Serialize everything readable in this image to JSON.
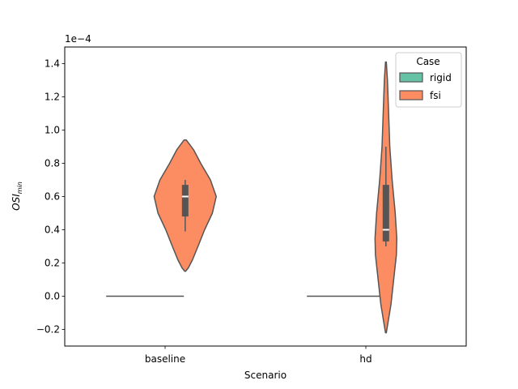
{
  "chart_data": {
    "type": "violin",
    "xlabel": "Scenario",
    "ylabel": "OSI",
    "ylabel_subscript": "min",
    "scale_label": "1e−4",
    "categories": [
      "baseline",
      "hd"
    ],
    "ylim": [
      -0.3,
      1.5
    ],
    "yticks": [
      -0.2,
      0.0,
      0.2,
      0.4,
      0.6,
      0.8,
      1.0,
      1.2,
      1.4
    ],
    "ytick_labels": [
      "−0.2",
      "0.0",
      "0.2",
      "0.4",
      "0.6",
      "0.8",
      "1.0",
      "1.2",
      "1.4"
    ],
    "legend": {
      "title": "Case",
      "placement": "top-right",
      "entries": [
        {
          "label": "rigid",
          "color": "#66c2a5"
        },
        {
          "label": "fsi",
          "color": "#fc8d62"
        }
      ]
    },
    "series": [
      {
        "name": "rigid",
        "color": "#66c2a5",
        "violins": [
          {
            "category": "baseline",
            "constant": 0.0
          },
          {
            "category": "hd",
            "constant": 0.0
          }
        ]
      },
      {
        "name": "fsi",
        "color": "#fc8d62",
        "violins": [
          {
            "category": "baseline",
            "profile": [
              [
                0.15,
                0.01
              ],
              [
                0.17,
                0.08
              ],
              [
                0.22,
                0.19
              ],
              [
                0.3,
                0.33
              ],
              [
                0.4,
                0.5
              ],
              [
                0.5,
                0.7
              ],
              [
                0.6,
                0.8
              ],
              [
                0.7,
                0.65
              ],
              [
                0.8,
                0.4
              ],
              [
                0.88,
                0.22
              ],
              [
                0.94,
                0.03
              ]
            ],
            "box": {
              "q1": 0.48,
              "median": 0.6,
              "q3": 0.67,
              "whisker_low": 0.39,
              "whisker_high": 0.7
            }
          },
          {
            "category": "hd",
            "profile": [
              [
                -0.22,
                0.01
              ],
              [
                -0.15,
                0.06
              ],
              [
                -0.05,
                0.13
              ],
              [
                0.1,
                0.2
              ],
              [
                0.25,
                0.27
              ],
              [
                0.35,
                0.28
              ],
              [
                0.5,
                0.24
              ],
              [
                0.7,
                0.16
              ],
              [
                0.9,
                0.1
              ],
              [
                1.1,
                0.07
              ],
              [
                1.3,
                0.04
              ],
              [
                1.41,
                0.01
              ]
            ],
            "box": {
              "q1": 0.33,
              "median": 0.4,
              "q3": 0.67,
              "whisker_low": 0.3,
              "whisker_high": 0.9
            }
          }
        ]
      }
    ]
  }
}
